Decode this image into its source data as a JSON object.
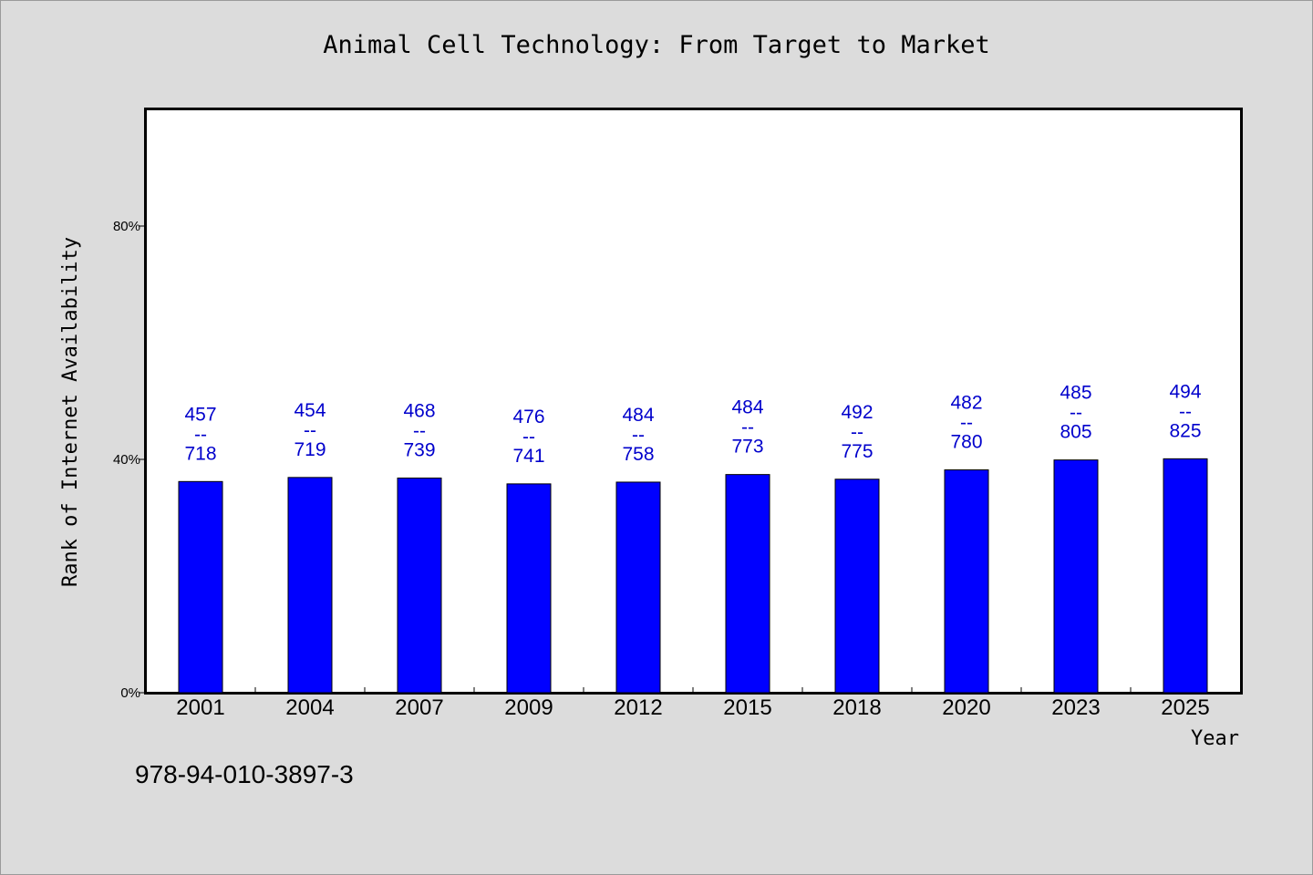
{
  "chart_data": {
    "type": "bar",
    "title": "Animal Cell Technology: From Target to Market",
    "xlabel": "Year",
    "ylabel": "Rank of Internet Availability",
    "categories": [
      "2001",
      "2004",
      "2007",
      "2009",
      "2012",
      "2015",
      "2018",
      "2020",
      "2023",
      "2025"
    ],
    "values": [
      36.2,
      36.9,
      36.8,
      35.8,
      36.1,
      37.4,
      36.6,
      38.2,
      39.9,
      40.1
    ],
    "labels": [
      {
        "top": "457",
        "sep": "--",
        "bottom": "718"
      },
      {
        "top": "454",
        "sep": "--",
        "bottom": "719"
      },
      {
        "top": "468",
        "sep": "--",
        "bottom": "739"
      },
      {
        "top": "476",
        "sep": "--",
        "bottom": "741"
      },
      {
        "top": "484",
        "sep": "--",
        "bottom": "758"
      },
      {
        "top": "484",
        "sep": "--",
        "bottom": "773"
      },
      {
        "top": "492",
        "sep": "--",
        "bottom": "775"
      },
      {
        "top": "482",
        "sep": "--",
        "bottom": "780"
      },
      {
        "top": "485",
        "sep": "--",
        "bottom": "805"
      },
      {
        "top": "494",
        "sep": "--",
        "bottom": "825"
      }
    ],
    "yticks": [
      {
        "value": 0,
        "label": "0%"
      },
      {
        "value": 40,
        "label": "40%"
      },
      {
        "value": 80,
        "label": "80%"
      }
    ],
    "ylim": [
      0,
      100
    ],
    "grid": false,
    "bar_color": "#0000ff",
    "label_color": "#0000cc"
  },
  "footer": {
    "isbn": "978-94-010-3897-3"
  }
}
